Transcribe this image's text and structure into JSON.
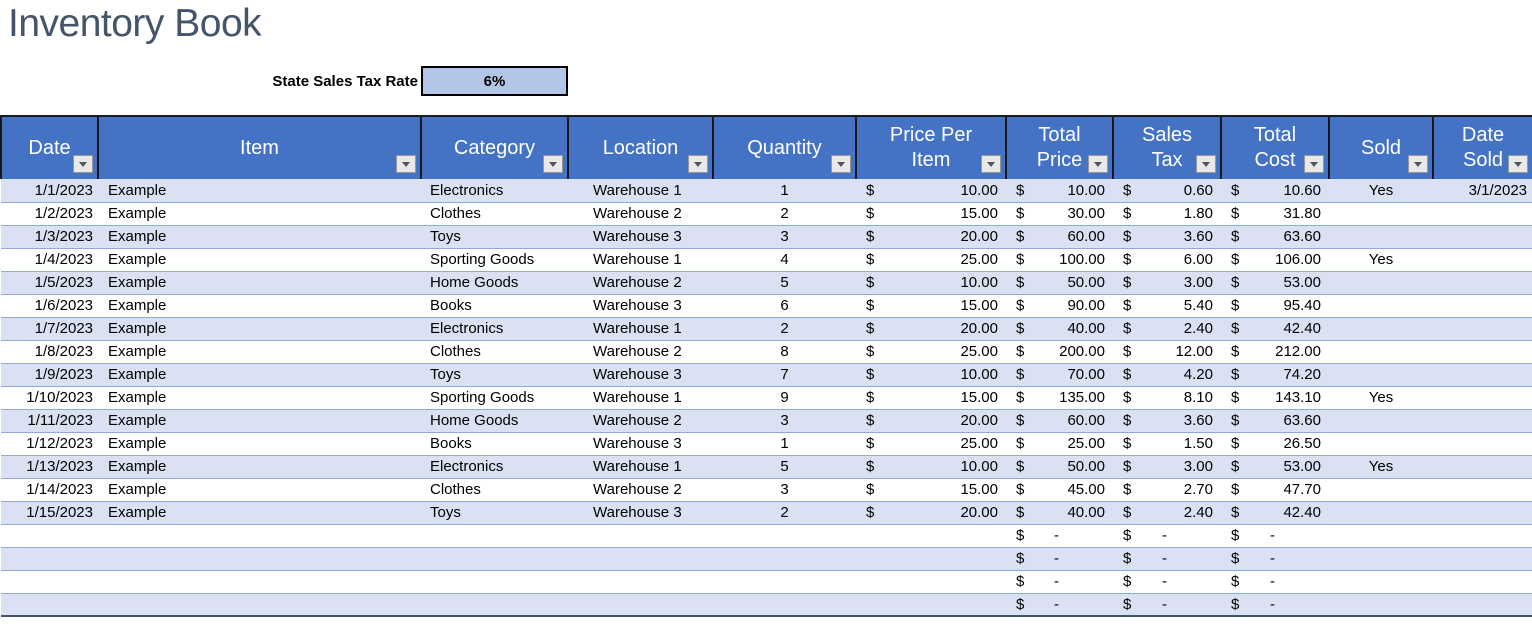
{
  "page": {
    "title": "Inventory Book"
  },
  "tax": {
    "label": "State Sales Tax Rate",
    "value": "6%"
  },
  "currency_symbol": "$",
  "colors": {
    "header_bg": "#4472C4",
    "band": "#D9E1F2",
    "row_border": "#8EA9DB",
    "tax_box": "#B4C6E7",
    "title_color": "#44546A"
  },
  "table": {
    "columns": [
      {
        "id": "date",
        "label": "Date"
      },
      {
        "id": "item",
        "label": "Item"
      },
      {
        "id": "category",
        "label": "Category"
      },
      {
        "id": "location",
        "label": "Location"
      },
      {
        "id": "quantity",
        "label": "Quantity"
      },
      {
        "id": "price_per_item",
        "label": "Price Per\nItem"
      },
      {
        "id": "total_price",
        "label": "Total\nPrice"
      },
      {
        "id": "sales_tax",
        "label": "Sales\nTax"
      },
      {
        "id": "total_cost",
        "label": "Total\nCost"
      },
      {
        "id": "sold",
        "label": "Sold"
      },
      {
        "id": "date_sold",
        "label": "Date\nSold"
      }
    ],
    "rows": [
      {
        "date": "1/1/2023",
        "item": "Example",
        "category": "Electronics",
        "location": "Warehouse 1",
        "quantity": "1",
        "price_per_item": "10.00",
        "total_price": "10.00",
        "sales_tax": "0.60",
        "total_cost": "10.60",
        "sold": "Yes",
        "date_sold": "3/1/2023"
      },
      {
        "date": "1/2/2023",
        "item": "Example",
        "category": "Clothes",
        "location": "Warehouse 2",
        "quantity": "2",
        "price_per_item": "15.00",
        "total_price": "30.00",
        "sales_tax": "1.80",
        "total_cost": "31.80",
        "sold": "",
        "date_sold": ""
      },
      {
        "date": "1/3/2023",
        "item": "Example",
        "category": "Toys",
        "location": "Warehouse 3",
        "quantity": "3",
        "price_per_item": "20.00",
        "total_price": "60.00",
        "sales_tax": "3.60",
        "total_cost": "63.60",
        "sold": "",
        "date_sold": ""
      },
      {
        "date": "1/4/2023",
        "item": "Example",
        "category": "Sporting Goods",
        "location": "Warehouse 1",
        "quantity": "4",
        "price_per_item": "25.00",
        "total_price": "100.00",
        "sales_tax": "6.00",
        "total_cost": "106.00",
        "sold": "Yes",
        "date_sold": ""
      },
      {
        "date": "1/5/2023",
        "item": "Example",
        "category": "Home Goods",
        "location": "Warehouse 2",
        "quantity": "5",
        "price_per_item": "10.00",
        "total_price": "50.00",
        "sales_tax": "3.00",
        "total_cost": "53.00",
        "sold": "",
        "date_sold": ""
      },
      {
        "date": "1/6/2023",
        "item": "Example",
        "category": "Books",
        "location": "Warehouse 3",
        "quantity": "6",
        "price_per_item": "15.00",
        "total_price": "90.00",
        "sales_tax": "5.40",
        "total_cost": "95.40",
        "sold": "",
        "date_sold": ""
      },
      {
        "date": "1/7/2023",
        "item": "Example",
        "category": "Electronics",
        "location": "Warehouse 1",
        "quantity": "2",
        "price_per_item": "20.00",
        "total_price": "40.00",
        "sales_tax": "2.40",
        "total_cost": "42.40",
        "sold": "",
        "date_sold": ""
      },
      {
        "date": "1/8/2023",
        "item": "Example",
        "category": "Clothes",
        "location": "Warehouse 2",
        "quantity": "8",
        "price_per_item": "25.00",
        "total_price": "200.00",
        "sales_tax": "12.00",
        "total_cost": "212.00",
        "sold": "",
        "date_sold": ""
      },
      {
        "date": "1/9/2023",
        "item": "Example",
        "category": "Toys",
        "location": "Warehouse 3",
        "quantity": "7",
        "price_per_item": "10.00",
        "total_price": "70.00",
        "sales_tax": "4.20",
        "total_cost": "74.20",
        "sold": "",
        "date_sold": ""
      },
      {
        "date": "1/10/2023",
        "item": "Example",
        "category": "Sporting Goods",
        "location": "Warehouse 1",
        "quantity": "9",
        "price_per_item": "15.00",
        "total_price": "135.00",
        "sales_tax": "8.10",
        "total_cost": "143.10",
        "sold": "Yes",
        "date_sold": ""
      },
      {
        "date": "1/11/2023",
        "item": "Example",
        "category": "Home Goods",
        "location": "Warehouse 2",
        "quantity": "3",
        "price_per_item": "20.00",
        "total_price": "60.00",
        "sales_tax": "3.60",
        "total_cost": "63.60",
        "sold": "",
        "date_sold": ""
      },
      {
        "date": "1/12/2023",
        "item": "Example",
        "category": "Books",
        "location": "Warehouse 3",
        "quantity": "1",
        "price_per_item": "25.00",
        "total_price": "25.00",
        "sales_tax": "1.50",
        "total_cost": "26.50",
        "sold": "",
        "date_sold": ""
      },
      {
        "date": "1/13/2023",
        "item": "Example",
        "category": "Electronics",
        "location": "Warehouse 1",
        "quantity": "5",
        "price_per_item": "10.00",
        "total_price": "50.00",
        "sales_tax": "3.00",
        "total_cost": "53.00",
        "sold": "Yes",
        "date_sold": ""
      },
      {
        "date": "1/14/2023",
        "item": "Example",
        "category": "Clothes",
        "location": "Warehouse 2",
        "quantity": "3",
        "price_per_item": "15.00",
        "total_price": "45.00",
        "sales_tax": "2.70",
        "total_cost": "47.70",
        "sold": "",
        "date_sold": ""
      },
      {
        "date": "1/15/2023",
        "item": "Example",
        "category": "Toys",
        "location": "Warehouse 3",
        "quantity": "2",
        "price_per_item": "20.00",
        "total_price": "40.00",
        "sales_tax": "2.40",
        "total_cost": "42.40",
        "sold": "",
        "date_sold": ""
      }
    ],
    "empty_rows": [
      {
        "date": "",
        "item": "",
        "category": "",
        "location": "",
        "quantity": "",
        "price_per_item": "",
        "total_price": "-",
        "sales_tax": "-",
        "total_cost": "-",
        "sold": "",
        "date_sold": ""
      },
      {
        "date": "",
        "item": "",
        "category": "",
        "location": "",
        "quantity": "",
        "price_per_item": "",
        "total_price": "-",
        "sales_tax": "-",
        "total_cost": "-",
        "sold": "",
        "date_sold": ""
      },
      {
        "date": "",
        "item": "",
        "category": "",
        "location": "",
        "quantity": "",
        "price_per_item": "",
        "total_price": "-",
        "sales_tax": "-",
        "total_cost": "-",
        "sold": "",
        "date_sold": ""
      },
      {
        "date": "",
        "item": "",
        "category": "",
        "location": "",
        "quantity": "",
        "price_per_item": "",
        "total_price": "-",
        "sales_tax": "-",
        "total_cost": "-",
        "sold": "",
        "date_sold": ""
      }
    ]
  }
}
